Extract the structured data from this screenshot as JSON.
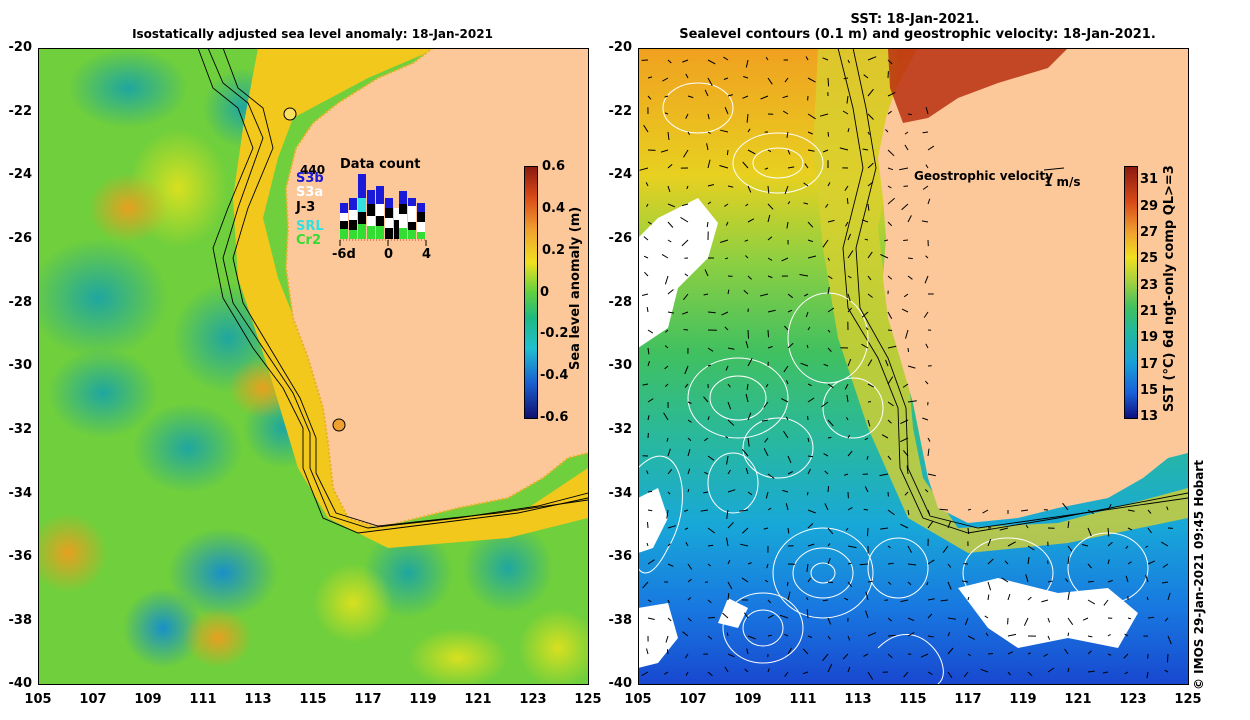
{
  "left_panel": {
    "title": "Isostatically adjusted sea level anomaly: 18-Jan-2021",
    "y_ticks": [
      "-20",
      "-22",
      "-24",
      "-26",
      "-28",
      "-30",
      "-32",
      "-34",
      "-36",
      "-38",
      "-40"
    ],
    "x_ticks": [
      "105",
      "107",
      "109",
      "111",
      "113",
      "115",
      "117",
      "119",
      "121",
      "123",
      "125"
    ],
    "colorbar": {
      "label": "Sea level anomaly (m)",
      "ticks": [
        "0.6",
        "0.4",
        "0.2",
        "0",
        "-0.2",
        "-0.4",
        "-0.6"
      ],
      "range": [
        -0.6,
        0.6
      ]
    },
    "data_count": {
      "title": "Data count",
      "max_label": "440",
      "x_ticks": [
        "-6d",
        "0",
        "4"
      ],
      "legend": [
        {
          "name": "S3b",
          "color": "#1a1ad8"
        },
        {
          "name": "S3a",
          "color": "#ffffff"
        },
        {
          "name": "J-3",
          "color": "#000000"
        },
        {
          "name": "SRL",
          "color": "#33e0e0"
        },
        {
          "name": "Cr2",
          "color": "#33dd33"
        }
      ]
    }
  },
  "right_panel": {
    "title_line1": "SST: 18-Jan-2021.",
    "title_line2": "Sealevel contours (0.1 m) and geostrophic velocity: 18-Jan-2021.",
    "y_ticks": [
      "-20",
      "-22",
      "-24",
      "-26",
      "-28",
      "-30",
      "-32",
      "-34",
      "-36",
      "-38",
      "-40"
    ],
    "x_ticks": [
      "105",
      "107",
      "109",
      "111",
      "113",
      "115",
      "117",
      "119",
      "121",
      "123",
      "125"
    ],
    "velocity_label": "Geostrophic velocity",
    "velocity_scale": "1 m/s",
    "colorbar": {
      "label": "SST (°C) 6d ngt-only comp QL>=3",
      "ticks": [
        "31",
        "29",
        "27",
        "25",
        "23",
        "21",
        "19",
        "17",
        "15",
        "13"
      ],
      "range": [
        13,
        32
      ]
    }
  },
  "credit": "© IMOS 29-Jan-2021 09:45 Hobart",
  "colors": {
    "land": "#fcc89a",
    "coast_dots": "#e8b020"
  }
}
